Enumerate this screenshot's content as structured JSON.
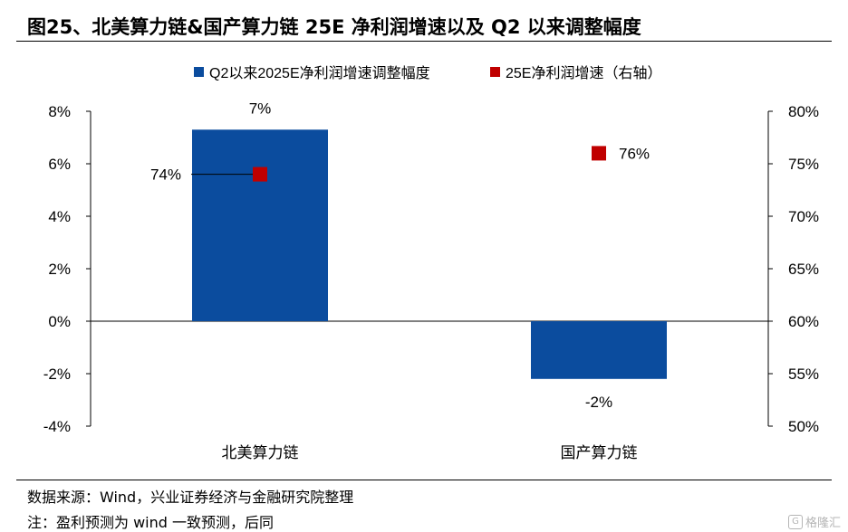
{
  "figure": {
    "title": "图25、北美算力链&国产算力链 25E 净利润增速以及 Q2 以来调整幅度"
  },
  "chart_data": {
    "type": "bar",
    "categories": [
      "北美算力链",
      "国产算力链"
    ],
    "series": [
      {
        "name": "Q2以来2025E净利润增速调整幅度",
        "kind": "bar",
        "axis": "left",
        "color": "#0b4c9e",
        "values": [
          7.3,
          -2.2
        ],
        "labels": [
          "7%",
          "-2%"
        ]
      },
      {
        "name": "25E净利润增速（右轴）",
        "kind": "marker",
        "axis": "right",
        "color": "#c00000",
        "values": [
          74,
          76
        ],
        "labels": [
          "74%",
          "76%"
        ]
      }
    ],
    "left_axis": {
      "ylim": [
        -4,
        8
      ],
      "ticks": [
        8,
        6,
        4,
        2,
        0,
        -2,
        -4
      ],
      "tick_labels": [
        "8%",
        "6%",
        "4%",
        "2%",
        "0%",
        "-2%",
        "-4%"
      ]
    },
    "right_axis": {
      "ylim": [
        50,
        80
      ],
      "ticks": [
        80,
        75,
        70,
        65,
        60,
        55,
        50
      ],
      "tick_labels": [
        "80%",
        "75%",
        "70%",
        "65%",
        "60%",
        "55%",
        "50%"
      ]
    },
    "legend_position": "top-center",
    "grid": false
  },
  "footer": {
    "source": "数据来源：Wind，兴业证券经济与金融研究院整理",
    "note": "注：盈利预测为 wind 一致预测，后同"
  },
  "watermark": {
    "text": "格隆汇",
    "logo": "G"
  }
}
